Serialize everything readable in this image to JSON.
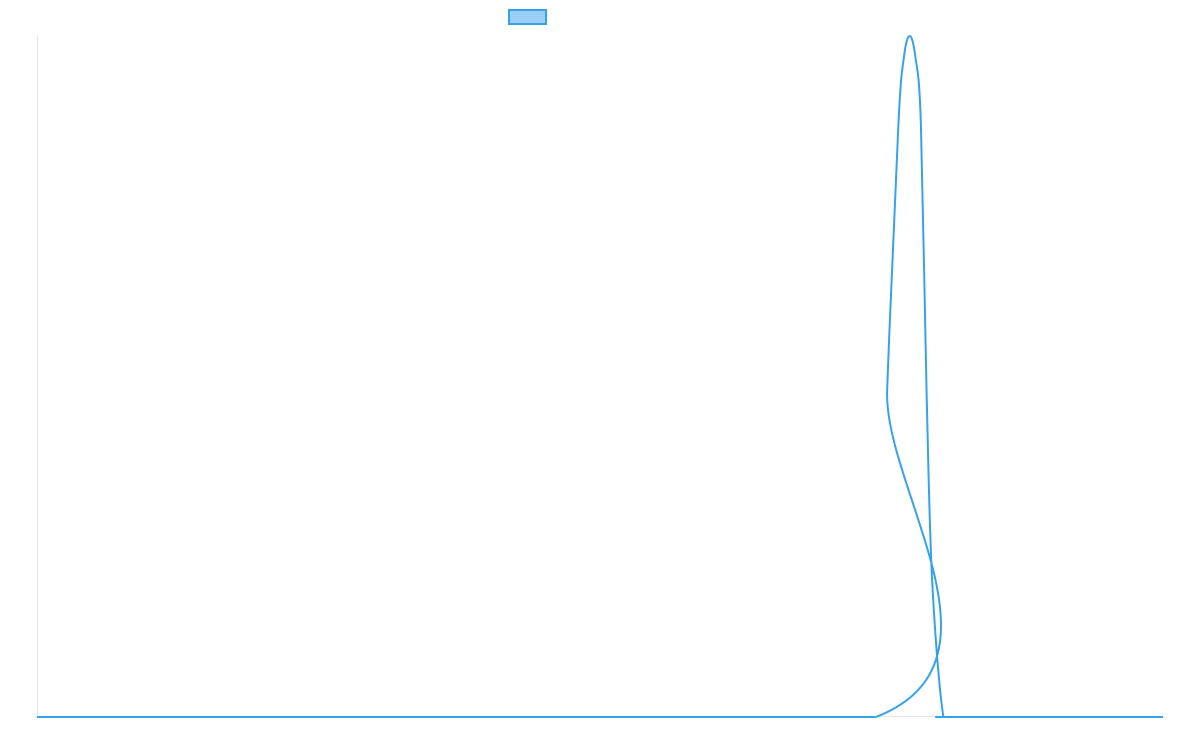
{
  "chart_data": {
    "type": "line",
    "title": "",
    "xlabel": "",
    "ylabel": "",
    "grid": false,
    "legend": {
      "position": "top",
      "entries": [
        {
          "name": "",
          "color": "#36a2eb",
          "fill": "#9ad0f5"
        }
      ]
    },
    "xlim": [
      0,
      100
    ],
    "ylim": [
      0,
      1
    ],
    "series": [
      {
        "name": "",
        "color": "#36a2eb",
        "x": [
          0,
          74.5,
          75.5,
          76.5,
          77.0,
          77.5,
          78.0,
          78.5,
          79.0,
          79.5,
          80.5,
          81.5,
          100
        ],
        "y": [
          0,
          0,
          0.48,
          0.87,
          0.97,
          1.0,
          0.97,
          0.87,
          0.48,
          0.2,
          0,
          0,
          0
        ]
      }
    ]
  }
}
